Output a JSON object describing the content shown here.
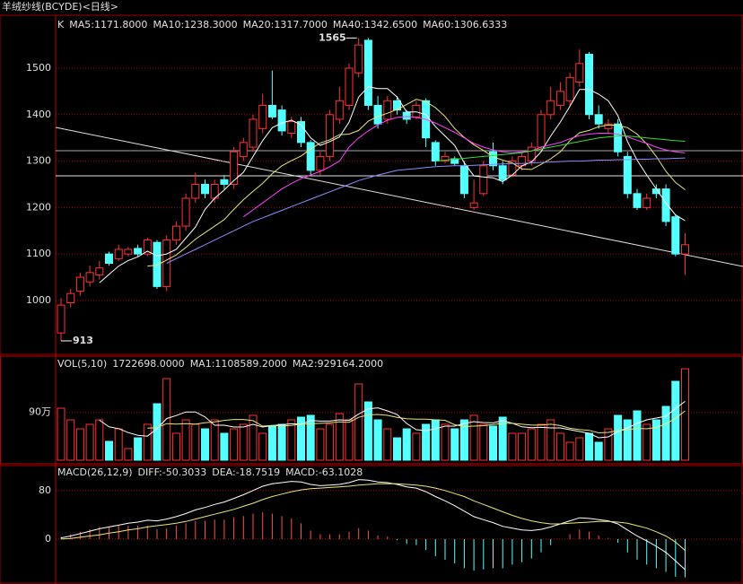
{
  "chart_data": [
    {
      "type": "candlestick",
      "title": "羊绒纱线(BCYDE)<日线>",
      "label": "K",
      "up_color": "#ff3232",
      "down_color": "#54ffff",
      "open": [
        930,
        995,
        1020,
        1040,
        1055,
        1100,
        1090,
        1100,
        1112,
        1100,
        1125,
        1030,
        1130,
        1160,
        1220,
        1250,
        1220,
        1260,
        1250,
        1310,
        1330,
        1370,
        1420,
        1410,
        1360,
        1385,
        1340,
        1280,
        1310,
        1390,
        1420,
        1490,
        1560,
        1420,
        1390,
        1430,
        1405,
        1395,
        1430,
        1340,
        1300,
        1305,
        1290,
        1200,
        1230,
        1320,
        1290,
        1270,
        1290,
        1300,
        1330,
        1400,
        1420,
        1430,
        1470,
        1530,
        1400,
        1370,
        1380,
        1310,
        1230,
        1200,
        1240,
        1240,
        1180,
        1100
      ],
      "high": [
        1005,
        1025,
        1060,
        1075,
        1085,
        1105,
        1120,
        1115,
        1120,
        1135,
        1130,
        1140,
        1170,
        1230,
        1275,
        1260,
        1260,
        1270,
        1330,
        1350,
        1400,
        1445,
        1495,
        1420,
        1395,
        1395,
        1345,
        1320,
        1410,
        1460,
        1510,
        1565,
        1565,
        1440,
        1440,
        1440,
        1410,
        1430,
        1435,
        1345,
        1320,
        1310,
        1300,
        1260,
        1300,
        1340,
        1300,
        1310,
        1320,
        1340,
        1410,
        1460,
        1470,
        1490,
        1540,
        1535,
        1420,
        1390,
        1390,
        1320,
        1240,
        1230,
        1250,
        1250,
        1185,
        1145
      ],
      "low": [
        913,
        985,
        1010,
        1030,
        1045,
        1075,
        1085,
        1095,
        1095,
        1095,
        1025,
        1020,
        1120,
        1150,
        1210,
        1220,
        1210,
        1240,
        1240,
        1300,
        1320,
        1360,
        1390,
        1355,
        1350,
        1330,
        1270,
        1270,
        1300,
        1380,
        1410,
        1480,
        1410,
        1370,
        1380,
        1400,
        1380,
        1390,
        1330,
        1290,
        1295,
        1290,
        1220,
        1195,
        1225,
        1280,
        1250,
        1265,
        1280,
        1290,
        1320,
        1390,
        1410,
        1420,
        1460,
        1390,
        1370,
        1360,
        1310,
        1220,
        1195,
        1195,
        1220,
        1160,
        1095,
        1055
      ],
      "close": [
        990,
        1015,
        1050,
        1060,
        1070,
        1080,
        1110,
        1110,
        1100,
        1130,
        1030,
        1130,
        1160,
        1220,
        1250,
        1230,
        1250,
        1250,
        1320,
        1340,
        1390,
        1420,
        1395,
        1365,
        1385,
        1340,
        1280,
        1310,
        1400,
        1430,
        1500,
        1550,
        1420,
        1380,
        1430,
        1410,
        1390,
        1420,
        1350,
        1300,
        1310,
        1295,
        1230,
        1210,
        1290,
        1290,
        1260,
        1300,
        1310,
        1330,
        1400,
        1430,
        1450,
        1480,
        1510,
        1400,
        1380,
        1380,
        1320,
        1230,
        1200,
        1220,
        1230,
        1170,
        1100,
        1120
      ],
      "series": [
        {
          "name": "MA5:1171.8000",
          "color": "#ffffff",
          "values": [
            null,
            null,
            null,
            null,
            1038,
            1056,
            1074,
            1086,
            1094,
            1106,
            1096,
            1100,
            1110,
            1134,
            1158,
            1196,
            1220,
            1238,
            1258,
            1276,
            1310,
            1344,
            1372,
            1382,
            1388,
            1378,
            1350,
            1334,
            1342,
            1352,
            1384,
            1438,
            1460,
            1456,
            1456,
            1438,
            1406,
            1406,
            1400,
            1374,
            1354,
            1334,
            1296,
            1268,
            1266,
            1264,
            1256,
            1270,
            1290,
            1298,
            1320,
            1354,
            1384,
            1418,
            1454,
            1454,
            1444,
            1430,
            1398,
            1342,
            1302,
            1270,
            1240,
            1210,
            1184,
            1171.8
          ]
        },
        {
          "name": "MA10:1238.3000",
          "color": "#e8e878",
          "values": [
            null,
            null,
            null,
            null,
            null,
            null,
            null,
            null,
            null,
            1074,
            1076,
            1087,
            1098,
            1114,
            1132,
            1146,
            1160,
            1174,
            1196,
            1217,
            1235,
            1252,
            1273,
            1290,
            1301,
            1311,
            1326,
            1339,
            1346,
            1357,
            1358,
            1366,
            1386,
            1396,
            1403,
            1411,
            1422,
            1433,
            1428,
            1415,
            1396,
            1370,
            1351,
            1335,
            1323,
            1309,
            1302,
            1296,
            1283,
            1282,
            1293,
            1305,
            1320,
            1344,
            1361,
            1366,
            1374,
            1378,
            1377,
            1372,
            1358,
            1337,
            1310,
            1278,
            1254,
            1238.3
          ]
        },
        {
          "name": "MA20:1317.7000",
          "color": "#ff40ff",
          "values": [
            null,
            null,
            null,
            null,
            null,
            null,
            null,
            null,
            null,
            null,
            null,
            null,
            null,
            null,
            null,
            null,
            null,
            null,
            null,
            1180,
            1195,
            1210,
            1225,
            1240,
            1252,
            1262,
            1270,
            1278,
            1288,
            1300,
            1330,
            1350,
            1365,
            1378,
            1388,
            1394,
            1396,
            1394,
            1390,
            1382,
            1372,
            1362,
            1350,
            1338,
            1330,
            1324,
            1320,
            1318,
            1320,
            1322,
            1330,
            1335,
            1340,
            1348,
            1355,
            1358,
            1360,
            1360,
            1358,
            1352,
            1345,
            1338,
            1330,
            1324,
            1320,
            1317.7
          ]
        },
        {
          "name": "MA40:1342.6500",
          "color": "#30e030",
          "values": [
            null,
            null,
            null,
            null,
            null,
            null,
            null,
            null,
            null,
            null,
            null,
            null,
            null,
            null,
            null,
            null,
            null,
            null,
            null,
            null,
            null,
            null,
            null,
            null,
            null,
            null,
            null,
            null,
            null,
            null,
            null,
            null,
            null,
            null,
            null,
            null,
            null,
            null,
            null,
            1300,
            1302,
            1304,
            1306,
            1308,
            1310,
            1312,
            1314,
            1316,
            1318,
            1322,
            1326,
            1330,
            1334,
            1338,
            1342,
            1346,
            1350,
            1352,
            1354,
            1354,
            1352,
            1350,
            1348,
            1346,
            1344,
            1342.65
          ]
        },
        {
          "name": "MA60:1306.6333",
          "color": "#8c8cff",
          "values": [
            null,
            null,
            null,
            null,
            null,
            null,
            null,
            null,
            null,
            null,
            null,
            1080,
            1090,
            1100,
            1110,
            1120,
            1130,
            1140,
            1150,
            1160,
            1170,
            1178,
            1186,
            1194,
            1202,
            1210,
            1218,
            1226,
            1234,
            1242,
            1250,
            1258,
            1264,
            1270,
            1275,
            1280,
            1282,
            1284,
            1286,
            1288,
            1289,
            1290,
            1290,
            1291,
            1292,
            1293,
            1294,
            1295,
            1295,
            1296,
            1297,
            1298,
            1299,
            1300,
            1300,
            1301,
            1302,
            1302,
            1303,
            1303,
            1304,
            1304,
            1305,
            1305,
            1306,
            1306.6333
          ]
        }
      ],
      "annotations": [
        "1565",
        "913"
      ],
      "ylim": [
        884,
        1612
      ],
      "yticks": [
        1000,
        1100,
        1200,
        1300,
        1400,
        1500
      ],
      "grid": true
    },
    {
      "type": "bar",
      "label": "VOL(5,10)",
      "value_label": "1722698.0000",
      "values": [
        980000,
        760000,
        591000,
        676000,
        760000,
        355000,
        591000,
        220000,
        422000,
        676000,
        1064000,
        1537000,
        507000,
        760000,
        676000,
        591000,
        760000,
        507000,
        591000,
        676000,
        845000,
        507000,
        642000,
        676000,
        760000,
        811000,
        845000,
        591000,
        676000,
        878000,
        760000,
        1436000,
        1098000,
        760000,
        591000,
        422000,
        591000,
        507000,
        676000,
        760000,
        676000,
        591000,
        760000,
        845000,
        676000,
        642000,
        811000,
        507000,
        507000,
        591000,
        676000,
        760000,
        507000,
        338000,
        422000,
        507000,
        338000,
        591000,
        845000,
        760000,
        929000,
        676000,
        760000,
        1013000,
        1486000,
        1722698
      ],
      "series": [
        {
          "name": "MA1:1108589.2000",
          "color": "#ffffff",
          "values": [
            null,
            null,
            null,
            null,
            753000,
            628000,
            595000,
            520000,
            470000,
            453000,
            595000,
            784000,
            841000,
            909000,
            909000,
            814000,
            659000,
            659000,
            625000,
            625000,
            676000,
            625000,
            652000,
            669000,
            686000,
            679000,
            747000,
            736000,
            736000,
            760000,
            750000,
            868000,
            969000,
            986000,
            929000,
            861000,
            692000,
            574000,
            557000,
            591000,
            642000,
            642000,
            692000,
            726000,
            709000,
            703000,
            747000,
            696000,
            628000,
            611000,
            618000,
            608000,
            608000,
            574000,
            540000,
            507000,
            422000,
            439000,
            540000,
            608000,
            692000,
            760000,
            794000,
            828000,
            973000,
            1108589.2
          ]
        },
        {
          "name": "MA2:929164.2000",
          "color": "#e8e878",
          "values": [
            null,
            null,
            null,
            null,
            null,
            null,
            null,
            null,
            null,
            603000,
            612000,
            690000,
            681000,
            690000,
            681000,
            704000,
            722000,
            750000,
            767000,
            767000,
            745000,
            642000,
            656000,
            647000,
            656000,
            678000,
            686000,
            694000,
            703000,
            723000,
            715000,
            808000,
            853000,
            861000,
            845000,
            806000,
            780000,
            772000,
            772000,
            760000,
            752000,
            667000,
            633000,
            642000,
            650000,
            673000,
            695000,
            694000,
            677000,
            660000,
            661000,
            678000,
            652000,
            601000,
            576000,
            563000,
            515000,
            524000,
            557000,
            574000,
            600000,
            591000,
            617000,
            684000,
            791000,
            929164.2
          ]
        }
      ],
      "ylim": [
        0,
        1960000
      ],
      "yticks": [
        {
          "value": 900000,
          "label": "90万"
        }
      ],
      "grid": true
    },
    {
      "type": "macd",
      "title": "MACD(26,12,9)",
      "name": "MACD:-63.1028",
      "up_color": "#ff5040",
      "down_color": "#54ffff",
      "values": [
        4,
        8,
        12,
        16,
        20,
        20,
        22,
        22,
        22,
        22,
        16,
        18,
        22,
        26,
        30,
        30,
        32,
        32,
        36,
        38,
        42,
        44,
        42,
        38,
        34,
        26,
        14,
        8,
        8,
        8,
        12,
        18,
        14,
        6,
        4,
        -2,
        -8,
        -10,
        -18,
        -28,
        -34,
        -40,
        -48,
        -52,
        -50,
        -48,
        -48,
        -42,
        -38,
        -32,
        -22,
        -10,
        0,
        8,
        16,
        12,
        6,
        2,
        -6,
        -22,
        -34,
        -42,
        -48,
        -54,
        -62,
        -63.1028
      ],
      "series": [
        {
          "name": "DIFF:-50.3033",
          "color": "#ffffff",
          "values": [
            2,
            5,
            9,
            13,
            17,
            20,
            23,
            26,
            28,
            31,
            30,
            33,
            37,
            42,
            48,
            52,
            57,
            61,
            67,
            73,
            80,
            87,
            91,
            93,
            95,
            94,
            90,
            88,
            89,
            90,
            93,
            98,
            97,
            94,
            93,
            90,
            86,
            84,
            78,
            70,
            63,
            55,
            46,
            37,
            32,
            27,
            21,
            18,
            15,
            14,
            16,
            20,
            25,
            30,
            35,
            34,
            32,
            30,
            25,
            15,
            5,
            -3,
            -12,
            -22,
            -36,
            -50.3033
          ]
        },
        {
          "name": "DEA:-18.7519",
          "color": "#e8e878",
          "values": [
            0,
            1,
            3,
            5,
            7,
            10,
            12,
            15,
            17,
            20,
            22,
            24,
            26,
            29,
            33,
            37,
            41,
            45,
            49,
            54,
            59,
            65,
            70,
            74,
            78,
            81,
            83,
            84,
            85,
            86,
            87,
            89,
            90,
            91,
            91,
            91,
            90,
            89,
            87,
            84,
            80,
            75,
            70,
            63,
            57,
            51,
            45,
            39,
            34,
            30,
            27,
            25,
            25,
            26,
            27,
            28,
            29,
            29,
            28,
            26,
            22,
            18,
            12,
            5,
            -5,
            -18.7519
          ]
        }
      ],
      "ylim": [
        -74,
        124
      ],
      "yticks": [
        0,
        80
      ],
      "grid": true
    }
  ]
}
